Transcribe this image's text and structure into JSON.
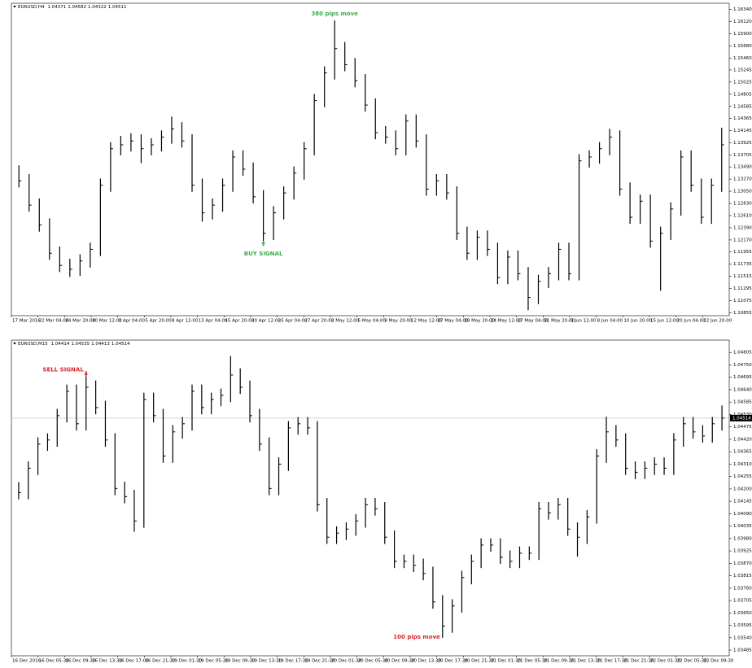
{
  "chart_data": [
    {
      "type": "ohlc",
      "symbol": "EURUSD,H4",
      "quote": [
        1.04371,
        1.04582,
        1.04322,
        1.04511
      ],
      "color": "#000000",
      "ylim": [
        1.108,
        1.1645
      ],
      "yticks": [
        {
          "value": 1.1634,
          "label": "1.16340"
        },
        {
          "value": 1.1612,
          "label": "1.16120"
        },
        {
          "value": 1.159,
          "label": "1.15900"
        },
        {
          "value": 1.1568,
          "label": "1.15680"
        },
        {
          "value": 1.1546,
          "label": "1.15460"
        },
        1.15245,
        1.15025,
        1.14805,
        1.14585,
        1.14365,
        1.14145,
        1.13925,
        1.13705,
        {
          "value": 1.1349,
          "label": "1.13490"
        },
        {
          "value": 1.1327,
          "label": "1.13270"
        },
        {
          "value": 1.1305,
          "label": "1.13050"
        },
        {
          "value": 1.1283,
          "label": "1.12830"
        },
        {
          "value": 1.1261,
          "label": "1.12610"
        },
        {
          "value": 1.1239,
          "label": "1.12390"
        },
        {
          "value": 1.1217,
          "label": "1.12170"
        },
        1.11955,
        1.11735,
        1.11515,
        1.11295,
        1.11075,
        1.10855
      ],
      "x_labels": [
        "17 Mar 2016",
        "22 Mar 04:00",
        "24 Mar 20:00",
        "30 Mar 12:00",
        "1 Apr 04:00",
        "5 Apr 20:00",
        "8 Apr 12:00",
        "13 Apr 04:00",
        "15 Apr 20:00",
        "20 Apr 12:00",
        "25 Apr 04:00",
        "27 Apr 20:00",
        "2 May 12:00",
        "5 May 04:00",
        "9 May 20:00",
        "12 May 12:00",
        "17 May 04:00",
        "19 May 20:00",
        "24 May 12:00",
        "27 May 04:00",
        "31 May 20:00",
        "3 Jun 12:00",
        "8 Jun 04:00",
        "10 Jun 20:00",
        "15 Jun 12:00",
        "20 Jun 04:00",
        "22 Jun 20:00"
      ],
      "high": [
        1.1352,
        1.1336,
        1.1292,
        1.1256,
        1.1205,
        1.1183,
        1.1191,
        1.1212,
        1.1328,
        1.1394,
        1.1405,
        1.141,
        1.1408,
        1.1401,
        1.1415,
        1.144,
        1.143,
        1.1408,
        1.1328,
        1.1292,
        1.1328,
        1.1379,
        1.1379,
        1.1357,
        1.1307,
        1.1278,
        1.1314,
        1.135,
        1.1394,
        1.1481,
        1.1531,
        1.1614,
        1.1575,
        1.1546,
        1.1517,
        1.1473,
        1.1423,
        1.1415,
        1.1444,
        1.1444,
        1.1408,
        1.1336,
        1.1336,
        1.1314,
        1.1241,
        1.1234,
        1.1234,
        1.1212,
        1.1198,
        1.1198,
        1.1168,
        1.1154,
        1.1168,
        1.1212,
        1.1212,
        1.1372,
        1.1379,
        1.1394,
        1.1418,
        1.1415,
        1.1321,
        1.1299,
        1.1299,
        1.1241,
        1.1285,
        1.1379,
        1.1379,
        1.1328,
        1.1328,
        1.142
      ],
      "low": [
        1.1312,
        1.1268,
        1.1232,
        1.1181,
        1.1159,
        1.115,
        1.1152,
        1.1167,
        1.1188,
        1.1304,
        1.137,
        1.1377,
        1.1356,
        1.137,
        1.1377,
        1.1391,
        1.1384,
        1.1304,
        1.125,
        1.1254,
        1.1268,
        1.1304,
        1.1333,
        1.1283,
        1.1215,
        1.1217,
        1.1254,
        1.129,
        1.1326,
        1.137,
        1.1457,
        1.1507,
        1.1522,
        1.1493,
        1.1449,
        1.1399,
        1.1391,
        1.137,
        1.137,
        1.1384,
        1.1297,
        1.1297,
        1.129,
        1.1217,
        1.1181,
        1.1181,
        1.1188,
        1.1137,
        1.1137,
        1.1144,
        1.109,
        1.1101,
        1.113,
        1.1144,
        1.1144,
        1.1144,
        1.1348,
        1.1355,
        1.137,
        1.1297,
        1.1246,
        1.1246,
        1.1203,
        1.1125,
        1.1217,
        1.1261,
        1.1304,
        1.1246,
        1.1246,
        1.1304
      ],
      "close": [
        1.1324,
        1.128,
        1.1244,
        1.1193,
        1.1171,
        1.1164,
        1.1179,
        1.12,
        1.1316,
        1.1382,
        1.1389,
        1.1396,
        1.1382,
        1.1389,
        1.1403,
        1.1418,
        1.1396,
        1.1316,
        1.1266,
        1.128,
        1.1316,
        1.1367,
        1.1345,
        1.1295,
        1.1229,
        1.1266,
        1.1302,
        1.1338,
        1.1382,
        1.1469,
        1.1519,
        1.1563,
        1.1534,
        1.1505,
        1.1461,
        1.1411,
        1.1403,
        1.1382,
        1.1432,
        1.1396,
        1.1309,
        1.1324,
        1.1302,
        1.1229,
        1.1193,
        1.1222,
        1.12,
        1.1149,
        1.1186,
        1.1156,
        1.1113,
        1.1142,
        1.1156,
        1.12,
        1.1156,
        1.136,
        1.1367,
        1.1382,
        1.1403,
        1.1309,
        1.1258,
        1.1287,
        1.1215,
        1.1229,
        1.1273,
        1.1367,
        1.1316,
        1.1258,
        1.1316,
        1.1389
      ],
      "annotations": [
        {
          "text": "380 pips move",
          "color": "#3dae4a"
        },
        {
          "text": "BUY SIGNAL",
          "color": "#3dae4a"
        }
      ]
    },
    {
      "type": "ohlc",
      "symbol": "EURUSD,M15",
      "quote": [
        1.04414,
        1.04535,
        1.04413,
        1.04514
      ],
      "color": "#000000",
      "ylim": [
        1.0346,
        1.0486
      ],
      "price_line": 1.04514,
      "yticks": [
        1.04805,
        {
          "value": 1.0475,
          "label": "1.04750"
        },
        1.04695,
        {
          "value": 1.0464,
          "label": "1.04640"
        },
        1.04585,
        {
          "value": 1.0453,
          "label": "1.04530"
        },
        1.04475,
        {
          "value": 1.0442,
          "label": "1.04420"
        },
        1.04365,
        {
          "value": 1.0431,
          "label": "1.04310"
        },
        1.04255,
        {
          "value": 1.042,
          "label": "1.04200"
        },
        1.04145,
        {
          "value": 1.0409,
          "label": "1.04090"
        },
        1.04035,
        {
          "value": 1.0398,
          "label": "1.03980"
        },
        1.03925,
        {
          "value": 1.0387,
          "label": "1.03870"
        },
        1.03815,
        {
          "value": 1.0376,
          "label": "1.03760"
        },
        1.03705,
        {
          "value": 1.0365,
          "label": "1.03650"
        },
        1.03595,
        {
          "value": 1.0354,
          "label": "1.03540"
        },
        1.03485
      ],
      "x_labels": [
        "16 Dec 2016",
        "16 Dec 05:30",
        "16 Dec 09:30",
        "16 Dec 13:30",
        "16 Dec 17:00",
        "16 Dec 21:30",
        "19 Dec 01:30",
        "19 Dec 05:30",
        "19 Dec 09:30",
        "19 Dec 13:30",
        "19 Dec 17:30",
        "19 Dec 21:30",
        "20 Dec 01:30",
        "20 Dec 05:30",
        "20 Dec 09:30",
        "20 Dec 13:30",
        "20 Dec 17:30",
        "20 Dec 21:30",
        "21 Dec 01:30",
        "21 Dec 05:30",
        "21 Dec 09:30",
        "21 Dec 13:30",
        "21 Dec 17:30",
        "21 Dec 21:30",
        "22 Dec 01:30",
        "22 Dec 05:30",
        "22 Dec 09:30"
      ],
      "high": [
        1.0423,
        1.04322,
        1.04429,
        1.04447,
        1.04555,
        1.04663,
        1.04663,
        1.047,
        1.04681,
        1.04591,
        1.04447,
        1.04232,
        1.04196,
        1.04627,
        1.04627,
        1.04555,
        1.04483,
        1.04519,
        1.04663,
        1.04663,
        1.04627,
        1.04645,
        1.0479,
        1.04735,
        1.04681,
        1.04555,
        1.04429,
        1.0434,
        1.04501,
        1.04519,
        1.04519,
        1.04501,
        1.0416,
        1.04034,
        1.04052,
        1.04088,
        1.0416,
        1.0416,
        1.04142,
        1.04016,
        1.03909,
        1.03909,
        1.03891,
        1.03855,
        1.03729,
        1.03711,
        1.03837,
        1.03909,
        1.03981,
        1.03981,
        1.03981,
        1.03927,
        1.03945,
        1.03945,
        1.04142,
        1.04142,
        1.0416,
        1.0416,
        1.04052,
        1.04106,
        1.04376,
        1.0452,
        1.04483,
        1.04447,
        1.04322,
        1.04322,
        1.0434,
        1.0434,
        1.04447,
        1.04519,
        1.04519,
        1.04483,
        1.04519,
        1.0457
      ],
      "low": [
        1.04154,
        1.04154,
        1.04262,
        1.04369,
        1.04387,
        1.04495,
        1.04459,
        1.04459,
        1.04531,
        1.04387,
        1.04172,
        1.04136,
        1.0401,
        1.04028,
        1.04495,
        1.04316,
        1.04316,
        1.04423,
        1.04459,
        1.04531,
        1.04531,
        1.04567,
        1.04585,
        1.04621,
        1.04495,
        1.04369,
        1.04172,
        1.04172,
        1.0428,
        1.04441,
        1.04441,
        1.041,
        1.03956,
        1.03956,
        1.03974,
        1.03992,
        1.04028,
        1.04082,
        1.03956,
        1.03849,
        1.03849,
        1.03831,
        1.03795,
        1.03669,
        1.0354,
        1.03562,
        1.03651,
        1.03777,
        1.03849,
        1.03921,
        1.03867,
        1.03849,
        1.03849,
        1.03885,
        1.03885,
        1.04064,
        1.04064,
        1.03992,
        1.039,
        1.03956,
        1.04046,
        1.04316,
        1.04387,
        1.04262,
        1.04244,
        1.04244,
        1.04262,
        1.04262,
        1.04262,
        1.04387,
        1.04423,
        1.04405,
        1.04405,
        1.04459
      ],
      "close": [
        1.04184,
        1.04292,
        1.04399,
        1.04417,
        1.04525,
        1.04633,
        1.04489,
        1.04651,
        1.04561,
        1.04417,
        1.04202,
        1.04166,
        1.04058,
        1.04597,
        1.04525,
        1.04346,
        1.04453,
        1.04489,
        1.04633,
        1.04561,
        1.04597,
        1.04615,
        1.04705,
        1.04651,
        1.04525,
        1.04399,
        1.04202,
        1.0431,
        1.04471,
        1.04489,
        1.04471,
        1.0413,
        1.03986,
        1.04004,
        1.04022,
        1.04058,
        1.0413,
        1.04112,
        1.03986,
        1.03879,
        1.03879,
        1.03861,
        1.03825,
        1.03699,
        1.03592,
        1.03681,
        1.03807,
        1.03879,
        1.03951,
        1.03951,
        1.03897,
        1.03879,
        1.03915,
        1.03915,
        1.04112,
        1.04094,
        1.0413,
        1.04022,
        1.03986,
        1.04076,
        1.04346,
        1.04453,
        1.04417,
        1.04292,
        1.04274,
        1.04292,
        1.0431,
        1.04292,
        1.04417,
        1.04489,
        1.04453,
        1.04435,
        1.04489,
        1.04514
      ],
      "annotations": [
        {
          "text": "SELL SIGNAL",
          "color": "#d9262b"
        },
        {
          "text": "100 pips move",
          "color": "#d9262b"
        }
      ]
    }
  ]
}
